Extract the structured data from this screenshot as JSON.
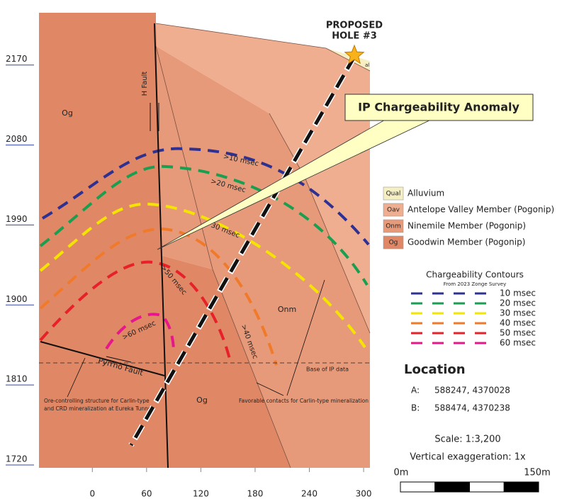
{
  "axes": {
    "xlim": [
      -59,
      307
    ],
    "ylim": [
      1712,
      2224
    ],
    "xticks": [
      0,
      60,
      120,
      180,
      240,
      300
    ],
    "yticks": [
      2170,
      2080,
      1990,
      1900,
      1810,
      1720
    ]
  },
  "section": {
    "hole_label": [
      "PROPOSED",
      "HOLE #3"
    ],
    "qal_tag": "al",
    "callout": "IP Chargeability Anomaly",
    "units": [
      "Og",
      "Og",
      "Onm"
    ],
    "faults": [
      "H Fault",
      "Pyrrho Fault"
    ],
    "base_line": "Base of IP data",
    "notes": [
      [
        "Ore-controlling structure for Carlin-type",
        "and CRD mineralization at Eureka Tunnel"
      ],
      [
        "Favorable contacts for Carlin-type mineralization"
      ]
    ],
    "contour_labels": [
      ">10 msec",
      ">20 msec",
      "30 msec",
      ">40 msec",
      ">50 msec",
      ">60 msec"
    ]
  },
  "legend": {
    "units": [
      {
        "code": "Qual",
        "name": "Alluvium",
        "color": "#f6efc4"
      },
      {
        "code": "Oav",
        "name": "Antelope Valley Member (Pogonip)",
        "color": "#f0ae90"
      },
      {
        "code": "Onm",
        "name": "Ninemile Member (Pogonip)",
        "color": "#e79a7a"
      },
      {
        "code": "Og",
        "name": "Goodwin Member (Pogonip)",
        "color": "#e08866"
      }
    ]
  },
  "contours": {
    "title": "Chargeability Contours",
    "subtitle": "From 2023 Zonge Survey",
    "items": [
      {
        "label": "10 msec",
        "color": "#2e3192"
      },
      {
        "label": "20 msec",
        "color": "#1a9e50"
      },
      {
        "label": "30 msec",
        "color": "#f4e400"
      },
      {
        "label": "40 msec",
        "color": "#f07a2a"
      },
      {
        "label": "50 msec",
        "color": "#e8202a"
      },
      {
        "label": "60 msec",
        "color": "#e5178a"
      }
    ]
  },
  "location": {
    "title": "Location",
    "points": [
      {
        "label": "A:",
        "coords": "588247, 4370028"
      },
      {
        "label": "B:",
        "coords": "588474, 4370238"
      }
    ]
  },
  "scale": {
    "text": "Scale: 1:3,200",
    "exaggeration": "Vertical exaggeration: 1x",
    "bar_labels": [
      "0m",
      "150m"
    ]
  }
}
